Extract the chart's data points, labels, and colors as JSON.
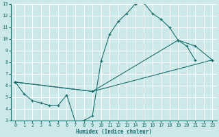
{
  "xlabel": "Humidex (Indice chaleur)",
  "bg_color": "#cce8e8",
  "grid_color": "#ffffff",
  "line_color": "#1a6e6e",
  "xlim": [
    -0.5,
    23.5
  ],
  "ylim": [
    3,
    13
  ],
  "xticks": [
    0,
    1,
    2,
    3,
    4,
    5,
    6,
    7,
    8,
    9,
    10,
    11,
    12,
    13,
    14,
    15,
    16,
    17,
    18,
    19,
    20,
    21,
    22,
    23
  ],
  "yticks": [
    3,
    4,
    5,
    6,
    7,
    8,
    9,
    10,
    11,
    12,
    13
  ],
  "lines": [
    {
      "x": [
        0,
        1,
        2,
        3,
        4,
        5,
        6,
        7,
        8,
        9,
        10,
        11,
        12,
        13,
        14,
        15,
        16,
        17,
        18,
        19,
        20,
        21
      ],
      "y": [
        6.3,
        5.3,
        4.7,
        4.5,
        4.3,
        4.3,
        5.2,
        2.9,
        3.0,
        3.4,
        8.1,
        10.4,
        11.5,
        12.2,
        13.0,
        13.1,
        12.2,
        11.7,
        11.0,
        9.9,
        9.4,
        8.2
      ]
    },
    {
      "x": [
        0,
        9,
        23
      ],
      "y": [
        6.3,
        5.5,
        8.2
      ]
    },
    {
      "x": [
        0,
        9,
        19,
        21,
        23
      ],
      "y": [
        6.3,
        5.5,
        9.9,
        9.4,
        8.2
      ]
    }
  ]
}
